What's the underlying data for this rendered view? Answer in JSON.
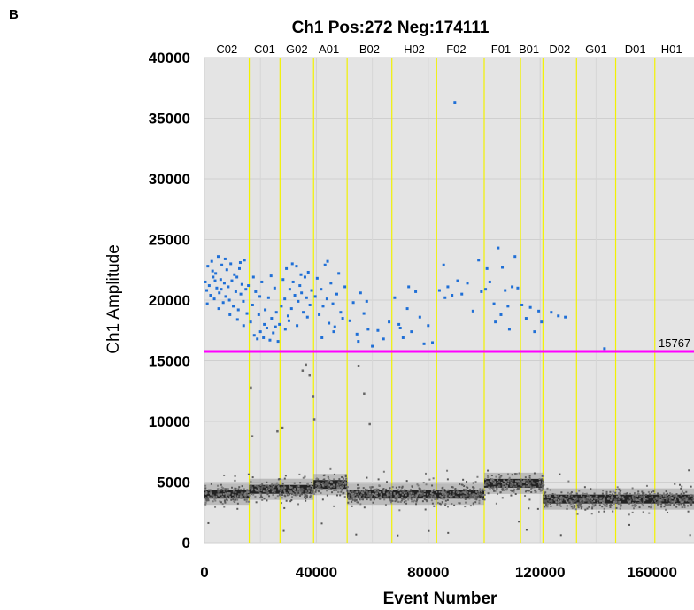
{
  "panel_label": "B",
  "chart_data": {
    "type": "scatter",
    "title": "Ch1 Pos:272 Neg:174111",
    "xlabel": "Event Number",
    "ylabel": "Ch1 Amplitude",
    "xlim": [
      0,
      175000
    ],
    "ylim": [
      0,
      40000
    ],
    "x_ticks": [
      0,
      40000,
      80000,
      120000,
      160000
    ],
    "y_ticks": [
      0,
      5000,
      10000,
      15000,
      20000,
      25000,
      30000,
      35000,
      40000
    ],
    "grid": true,
    "background": "#e4e4e4",
    "threshold": {
      "value": 15767,
      "label": "15767",
      "color": "#ff00ff"
    },
    "well_labels": [
      "C02",
      "C01",
      "G02",
      "A01",
      "B02",
      "H02",
      "F02",
      "F01",
      "B01",
      "D02",
      "G01",
      "D01",
      "H01"
    ],
    "well_label_x": [
      8000,
      21500,
      33000,
      44500,
      59000,
      75000,
      90000,
      106000,
      116000,
      127000,
      140000,
      154000,
      167000
    ],
    "well_boundaries": [
      16000,
      27000,
      39000,
      51000,
      67000,
      83000,
      100000,
      113000,
      121000,
      133000,
      147000,
      161000
    ],
    "well_boundary_color": "#f2f200",
    "negative_cluster": {
      "color": "#222222",
      "segments": [
        {
          "x": [
            0,
            16000
          ],
          "y_center": 4000
        },
        {
          "x": [
            16000,
            39000
          ],
          "y_center": 4400
        },
        {
          "x": [
            39000,
            51000
          ],
          "y_center": 4800
        },
        {
          "x": [
            51000,
            100000
          ],
          "y_center": 4000
        },
        {
          "x": [
            100000,
            121000
          ],
          "y_center": 4900
        },
        {
          "x": [
            121000,
            175000
          ],
          "y_center": 3600
        }
      ]
    },
    "positive_series": {
      "name": "Positive droplets",
      "color": "#1f6fd6",
      "points": [
        [
          300,
          21500
        ],
        [
          800,
          20800
        ],
        [
          1200,
          22800
        ],
        [
          1700,
          21200
        ],
        [
          2200,
          20400
        ],
        [
          2600,
          23200
        ],
        [
          3100,
          21900
        ],
        [
          3500,
          20100
        ],
        [
          4000,
          22200
        ],
        [
          4400,
          21000
        ],
        [
          4900,
          23600
        ],
        [
          5300,
          20600
        ],
        [
          5800,
          21700
        ],
        [
          6200,
          22900
        ],
        [
          6700,
          19800
        ],
        [
          7100,
          21400
        ],
        [
          7600,
          20300
        ],
        [
          8000,
          22500
        ],
        [
          8500,
          21100
        ],
        [
          8900,
          20000
        ],
        [
          9400,
          23000
        ],
        [
          9800,
          21600
        ],
        [
          10300,
          19500
        ],
        [
          10700,
          22100
        ],
        [
          11200,
          20700
        ],
        [
          11600,
          21900
        ],
        [
          12100,
          19200
        ],
        [
          12500,
          22600
        ],
        [
          13000,
          20500
        ],
        [
          13400,
          21300
        ],
        [
          13900,
          19900
        ],
        [
          14300,
          23300
        ],
        [
          14800,
          20900
        ],
        [
          15200,
          18900
        ],
        [
          15700,
          21200
        ],
        [
          1000,
          19700
        ],
        [
          2900,
          22400
        ],
        [
          5100,
          19300
        ],
        [
          7400,
          23400
        ],
        [
          9100,
          18800
        ],
        [
          11800,
          18400
        ],
        [
          14000,
          17900
        ],
        [
          6000,
          20900
        ],
        [
          3800,
          21600
        ],
        [
          12800,
          23100
        ],
        [
          16500,
          18200
        ],
        [
          17200,
          19600
        ],
        [
          17800,
          17100
        ],
        [
          18300,
          20700
        ],
        [
          18900,
          16800
        ],
        [
          19400,
          18800
        ],
        [
          20000,
          17400
        ],
        [
          20500,
          21500
        ],
        [
          21100,
          16900
        ],
        [
          21700,
          19200
        ],
        [
          22300,
          17700
        ],
        [
          22900,
          20200
        ],
        [
          23400,
          16700
        ],
        [
          24000,
          18500
        ],
        [
          24600,
          17300
        ],
        [
          25100,
          21000
        ],
        [
          25700,
          19000
        ],
        [
          26300,
          16600
        ],
        [
          26800,
          18000
        ],
        [
          17500,
          21900
        ],
        [
          19800,
          20300
        ],
        [
          23800,
          22000
        ],
        [
          25400,
          17800
        ],
        [
          21400,
          18000
        ],
        [
          27500,
          19500
        ],
        [
          28100,
          21700
        ],
        [
          28700,
          20100
        ],
        [
          29300,
          22600
        ],
        [
          29900,
          18700
        ],
        [
          30500,
          20900
        ],
        [
          31100,
          19300
        ],
        [
          31700,
          21500
        ],
        [
          32300,
          20400
        ],
        [
          32900,
          22800
        ],
        [
          33500,
          19900
        ],
        [
          34100,
          21200
        ],
        [
          34700,
          20600
        ],
        [
          35300,
          19000
        ],
        [
          35900,
          21900
        ],
        [
          36500,
          20200
        ],
        [
          37100,
          22300
        ],
        [
          37700,
          19600
        ],
        [
          38300,
          20800
        ],
        [
          28900,
          17600
        ],
        [
          30200,
          18300
        ],
        [
          33100,
          17900
        ],
        [
          36800,
          18600
        ],
        [
          31400,
          23000
        ],
        [
          34500,
          22100
        ],
        [
          39600,
          20300
        ],
        [
          40300,
          21800
        ],
        [
          41000,
          18800
        ],
        [
          41700,
          20900
        ],
        [
          42400,
          19500
        ],
        [
          43100,
          22900
        ],
        [
          43800,
          20100
        ],
        [
          44500,
          18100
        ],
        [
          45200,
          21400
        ],
        [
          45900,
          19700
        ],
        [
          46600,
          17800
        ],
        [
          47300,
          20500
        ],
        [
          48000,
          22200
        ],
        [
          48700,
          19000
        ],
        [
          49400,
          18500
        ],
        [
          50200,
          21100
        ],
        [
          42000,
          16900
        ],
        [
          46200,
          17400
        ],
        [
          44000,
          23200
        ],
        [
          52000,
          18300
        ],
        [
          53200,
          19800
        ],
        [
          54500,
          17200
        ],
        [
          55800,
          20600
        ],
        [
          57000,
          18900
        ],
        [
          58500,
          17600
        ],
        [
          60000,
          16200
        ],
        [
          62000,
          17500
        ],
        [
          64000,
          16800
        ],
        [
          66000,
          18200
        ],
        [
          58000,
          19900
        ],
        [
          55000,
          16600
        ],
        [
          68000,
          20200
        ],
        [
          69500,
          18000
        ],
        [
          71000,
          16900
        ],
        [
          72500,
          19300
        ],
        [
          74000,
          17400
        ],
        [
          75500,
          20700
        ],
        [
          77000,
          18600
        ],
        [
          78500,
          16400
        ],
        [
          80000,
          17900
        ],
        [
          81500,
          16500
        ],
        [
          73000,
          21100
        ],
        [
          70000,
          17700
        ],
        [
          84000,
          20800
        ],
        [
          85500,
          22900
        ],
        [
          87000,
          21100
        ],
        [
          88500,
          20400
        ],
        [
          89500,
          36300
        ],
        [
          90500,
          21600
        ],
        [
          92000,
          20500
        ],
        [
          94000,
          21400
        ],
        [
          96000,
          19100
        ],
        [
          98000,
          23300
        ],
        [
          99000,
          20700
        ],
        [
          86000,
          20200
        ],
        [
          100500,
          20900
        ],
        [
          102000,
          21500
        ],
        [
          103500,
          19700
        ],
        [
          105000,
          24300
        ],
        [
          106500,
          22700
        ],
        [
          107500,
          20800
        ],
        [
          108500,
          19500
        ],
        [
          110000,
          21100
        ],
        [
          111000,
          23600
        ],
        [
          112000,
          21000
        ],
        [
          104000,
          18200
        ],
        [
          109000,
          17600
        ],
        [
          101000,
          22600
        ],
        [
          106000,
          18800
        ],
        [
          113500,
          19600
        ],
        [
          115000,
          18500
        ],
        [
          116500,
          19400
        ],
        [
          118000,
          17400
        ],
        [
          119500,
          19100
        ],
        [
          120500,
          18200
        ],
        [
          124000,
          19000
        ],
        [
          126500,
          18700
        ],
        [
          129000,
          18600
        ],
        [
          143000,
          16000
        ]
      ]
    },
    "scattered_points": [
      [
        16500,
        12800
      ],
      [
        27800,
        9500
      ],
      [
        35000,
        14200
      ],
      [
        37500,
        13800
      ],
      [
        38800,
        12100
      ],
      [
        39200,
        10200
      ],
      [
        55000,
        14600
      ],
      [
        57000,
        12300
      ],
      [
        59000,
        9800
      ],
      [
        36200,
        14700
      ],
      [
        17000,
        8800
      ],
      [
        26000,
        9200
      ]
    ]
  }
}
